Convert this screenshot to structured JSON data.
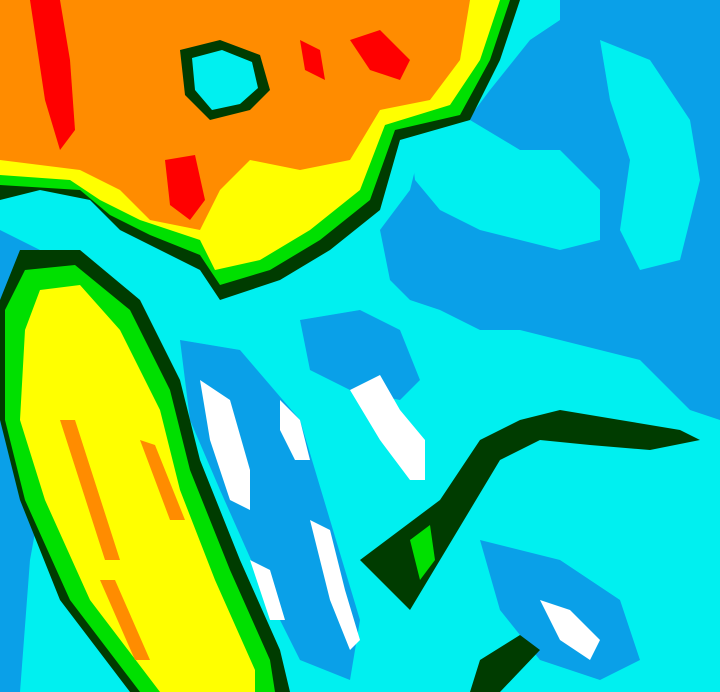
{
  "palette": {
    "background": "#00f0f0",
    "low": "#0aa0e8",
    "mid_dark": "#003c00",
    "mid": "#00e000",
    "high": "#ffff00",
    "higher": "#ff8c00",
    "highest": "#ff0000",
    "clear": "#ffffff"
  }
}
